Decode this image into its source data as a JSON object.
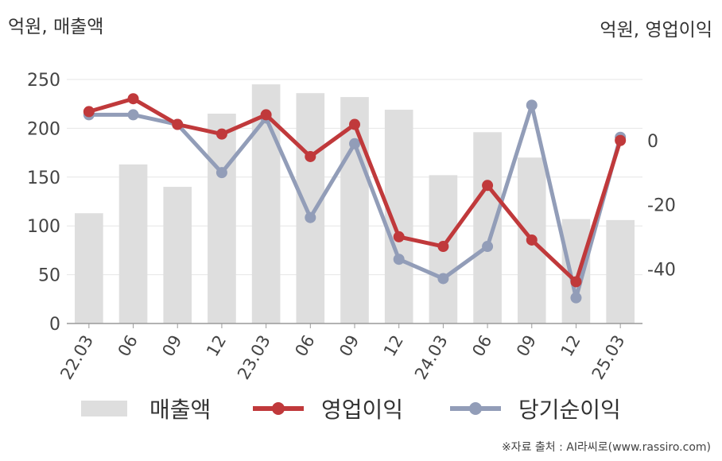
{
  "units": {
    "left": "억원, 매출액",
    "right": "억원, 영업이익"
  },
  "source": "※자료 출처 : AI라씨로(www.rassiro.com)",
  "colors": {
    "bar": "#dedede",
    "operating": "#c0393b",
    "net": "#929db8",
    "grid": "#e6e6e6",
    "axis": "#9a9a9a"
  },
  "chart_data": {
    "type": "bar+line",
    "categories": [
      "22.03",
      "06",
      "09",
      "12",
      "23.03",
      "06",
      "09",
      "12",
      "24.03",
      "06",
      "09",
      "12",
      "25.03"
    ],
    "left_axis": {
      "label": "억원, 매출액",
      "ylim": [
        0,
        250
      ],
      "ticks": [
        0,
        50,
        100,
        150,
        200,
        250
      ]
    },
    "right_axis": {
      "label": "억원, 영업이익",
      "ylim": [
        -57,
        19
      ],
      "ticks": [
        0,
        -20,
        -40
      ]
    },
    "series": [
      {
        "name": "매출액",
        "type": "bar",
        "axis": "left",
        "values": [
          113,
          163,
          140,
          215,
          245,
          236,
          232,
          219,
          152,
          196,
          170,
          107,
          106
        ]
      },
      {
        "name": "영업이익",
        "type": "line",
        "axis": "right",
        "values": [
          9,
          13,
          5,
          2,
          8,
          -5,
          5,
          -30,
          -33,
          -14,
          -31,
          -44,
          0
        ]
      },
      {
        "name": "당기순이익",
        "type": "line",
        "axis": "right",
        "values": [
          8,
          8,
          5,
          -10,
          7,
          -24,
          -1,
          -37,
          -43,
          -33,
          11,
          -49,
          1
        ]
      }
    ],
    "grid": true,
    "legend": "bottom"
  }
}
